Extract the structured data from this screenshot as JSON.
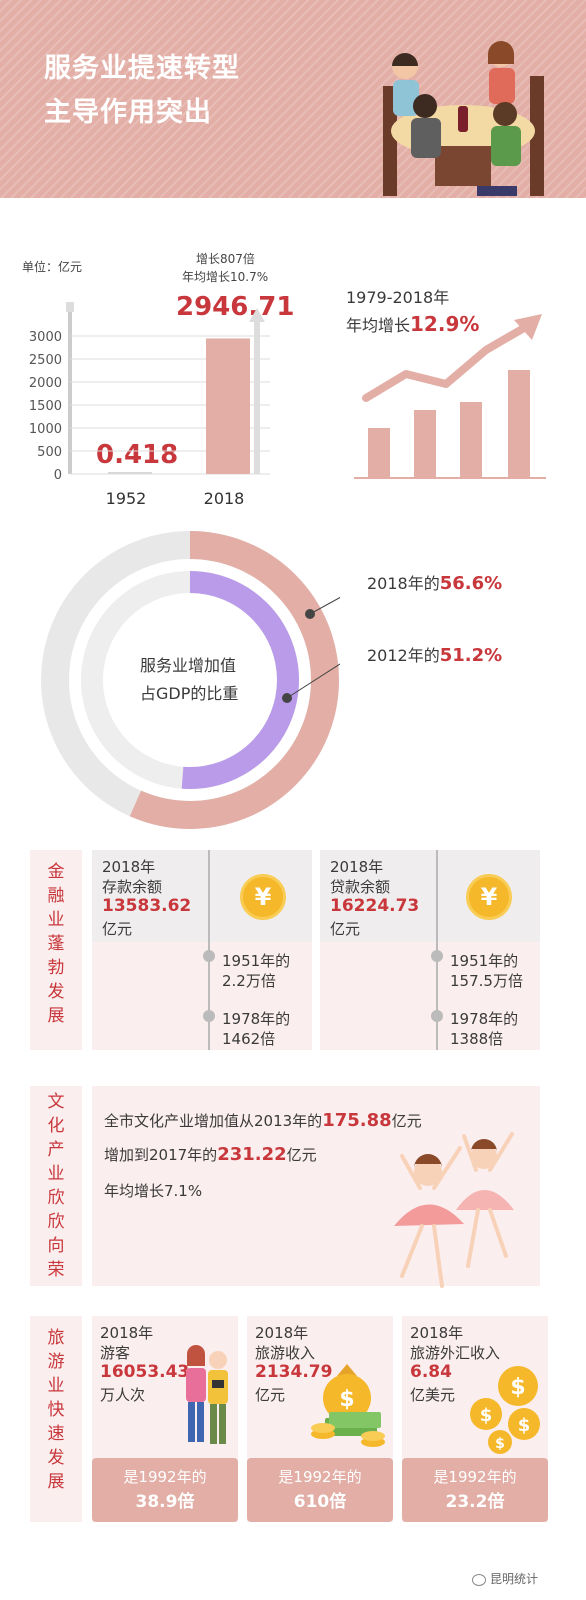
{
  "header": {
    "title_line1": "服务业提速转型",
    "title_line2": "主导作用突出"
  },
  "gdp_chart": {
    "unit": "单位：亿元",
    "growth_line1": "增长807倍",
    "growth_line2": "年均增长10.7%",
    "callout_2018": "2946.71",
    "callout_1952": "0.418",
    "right_label": "1979-2018年",
    "right_growth_prefix": "年均增长",
    "right_growth_value": "12.9%"
  },
  "chart_data": {
    "type": "bar",
    "categories": [
      "1952",
      "2018"
    ],
    "values": [
      0.418,
      2946.71
    ],
    "title": "",
    "xlabel": "",
    "ylabel": "单位：亿元",
    "ylim": [
      0,
      3000
    ],
    "yticks": [
      "0",
      "500",
      "1000",
      "1500",
      "2000",
      "2500",
      "3000"
    ]
  },
  "share": {
    "center_line1": "服务业增加值",
    "center_line2": "占GDP的比重",
    "label_2018_prefix": "2018年的",
    "label_2018_value": "56.6%",
    "label_2012_prefix": "2012年的",
    "label_2012_value": "51.2%",
    "value_2018": 56.6,
    "value_2012": 51.2
  },
  "finance": {
    "side_label": [
      "金",
      "融",
      "业",
      "蓬",
      "勃",
      "发",
      "展"
    ],
    "cards": [
      {
        "year": "2018年",
        "name": "存款余额",
        "value": "13583.62",
        "unit": "亿元",
        "c1a": "1951年的",
        "c1b": "2.2万倍",
        "c2a": "1978年的",
        "c2b": "1462倍",
        "icon": "¥"
      },
      {
        "year": "2018年",
        "name": "贷款余额",
        "value": "16224.73",
        "unit": "亿元",
        "c1a": "1951年的",
        "c1b": "157.5万倍",
        "c2a": "1978年的",
        "c2b": "1388倍",
        "icon": "¥"
      }
    ]
  },
  "culture": {
    "side_label": [
      "文",
      "化",
      "产",
      "业",
      "欣",
      "欣",
      "向",
      "荣"
    ],
    "l1_pre": "全市文化产业增加值从2013年的",
    "l1_val": "175.88",
    "l1_post": "亿元",
    "l2_pre": "增加到2017年的",
    "l2_val": "231.22",
    "l2_post": "亿元",
    "l3": "年均增长7.1%"
  },
  "tourism": {
    "side_label": [
      "旅",
      "游",
      "业",
      "快",
      "速",
      "发",
      "展"
    ],
    "cards": [
      {
        "year": "2018年",
        "name": "游客",
        "value": "16053.43",
        "unit": "万人次",
        "pill_a": "是1992年的",
        "pill_b": "38.9倍"
      },
      {
        "year": "2018年",
        "name": "旅游收入",
        "value": "2134.79",
        "unit": "亿元",
        "pill_a": "是1992年的",
        "pill_b": "610倍"
      },
      {
        "year": "2018年",
        "name": "旅游外汇收入",
        "value": "6.84",
        "unit": "亿美元",
        "pill_a": "是1992年的",
        "pill_b": "23.2倍"
      }
    ]
  },
  "footer": {
    "brand": "昆明统计"
  },
  "colors": {
    "accent_red": "#c8373b",
    "pink": "#e2aea6",
    "light_pink": "#fbeeee",
    "purple": "#b99be9",
    "grey": "#e8e8e8"
  }
}
